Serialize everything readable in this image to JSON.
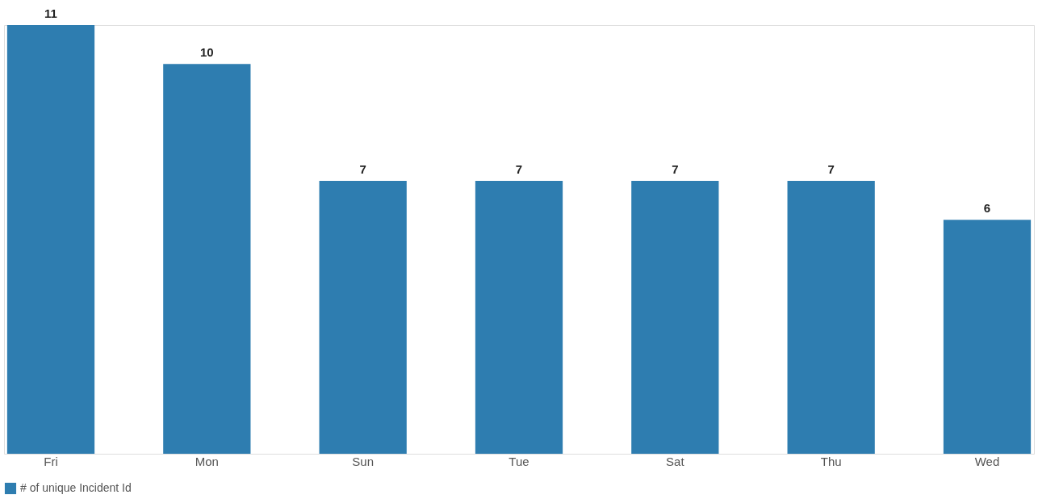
{
  "chart_data": {
    "type": "bar",
    "categories": [
      "Fri",
      "Mon",
      "Sun",
      "Tue",
      "Sat",
      "Thu",
      "Wed"
    ],
    "series": [
      {
        "name": "# of unique Incident Id",
        "color": "#2e7db0",
        "values": [
          11,
          10,
          7,
          7,
          7,
          7,
          6
        ]
      }
    ],
    "data_labels": true,
    "grid": false,
    "legend": "bottom"
  }
}
